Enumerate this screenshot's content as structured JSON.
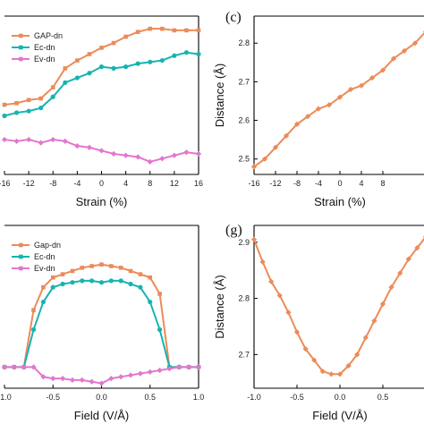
{
  "panel_labels": [
    "(c)",
    "(g)"
  ],
  "colors": {
    "orange": "#EC8B58",
    "teal": "#16B4B0",
    "pink": "#E277CF",
    "axis": "#000000"
  },
  "chart_data": [
    {
      "id": "top-left",
      "type": "line",
      "xlabel": "Strain (%)",
      "ylabel": "",
      "xlim": [
        -16,
        16
      ],
      "ylim": [
        0,
        1
      ],
      "xticks": [
        -16,
        -12,
        -8,
        -4,
        0,
        4,
        8,
        12,
        16
      ],
      "yticks": [],
      "legend": {
        "position": "top-left",
        "entries": [
          "GAP-dn",
          "Ec-dn",
          "Ev-dn"
        ]
      },
      "x": [
        -16,
        -14,
        -12,
        -10,
        -8,
        -6,
        -4,
        -2,
        0,
        2,
        4,
        6,
        8,
        10,
        12,
        14,
        16
      ],
      "series": [
        {
          "name": "GAP-dn",
          "color": "#EC8B58",
          "values": [
            0.44,
            0.45,
            0.47,
            0.48,
            0.55,
            0.67,
            0.72,
            0.76,
            0.8,
            0.83,
            0.87,
            0.9,
            0.92,
            0.92,
            0.91,
            0.91,
            0.91
          ]
        },
        {
          "name": "Ec-dn",
          "color": "#16B4B0",
          "values": [
            0.37,
            0.39,
            0.4,
            0.42,
            0.49,
            0.58,
            0.61,
            0.64,
            0.68,
            0.67,
            0.68,
            0.7,
            0.71,
            0.72,
            0.75,
            0.77,
            0.76
          ]
        },
        {
          "name": "Ev-dn",
          "color": "#E277CF",
          "values": [
            0.22,
            0.21,
            0.22,
            0.2,
            0.22,
            0.21,
            0.18,
            0.17,
            0.15,
            0.13,
            0.12,
            0.11,
            0.08,
            0.1,
            0.12,
            0.14,
            0.13
          ]
        }
      ]
    },
    {
      "id": "top-right",
      "type": "line",
      "xlabel": "Strain (%)",
      "ylabel": "Distance (Å)",
      "xlim": [
        -16,
        16
      ],
      "ylim": [
        2.46,
        2.87
      ],
      "xticks": [
        -16,
        -12,
        -8,
        -4,
        0,
        4,
        8
      ],
      "yticks": [
        2.5,
        2.6,
        2.7,
        2.8
      ],
      "x": [
        -16,
        -14,
        -12,
        -10,
        -8,
        -6,
        -4,
        -2,
        0,
        2,
        4,
        6,
        8,
        10,
        12,
        14,
        16
      ],
      "series": [
        {
          "name": "",
          "color": "#EC8B58",
          "values": [
            2.48,
            2.5,
            2.53,
            2.56,
            2.59,
            2.61,
            2.63,
            2.64,
            2.66,
            2.68,
            2.69,
            2.71,
            2.73,
            2.76,
            2.78,
            2.8,
            2.83
          ]
        }
      ]
    },
    {
      "id": "bottom-left",
      "type": "line",
      "xlabel": "Field (V/Å)",
      "ylabel": "",
      "xlim": [
        -1.0,
        1.0
      ],
      "ylim": [
        0,
        1
      ],
      "xticks": [
        "-1.0",
        "-0.5",
        "0.0",
        "0.5",
        "1.0"
      ],
      "yticks": [],
      "legend": {
        "position": "top-left",
        "entries": [
          "Gap-dn",
          "Ec-dn",
          "Ev-dn"
        ]
      },
      "x": [
        -1.0,
        -0.9,
        -0.8,
        -0.7,
        -0.6,
        -0.5,
        -0.4,
        -0.3,
        -0.2,
        -0.1,
        0.0,
        0.1,
        0.2,
        0.3,
        0.4,
        0.5,
        0.6,
        0.7,
        0.8,
        0.9,
        1.0
      ],
      "series": [
        {
          "name": "Gap-dn",
          "color": "#EC8B58",
          "values": [
            0.13,
            0.13,
            0.13,
            0.48,
            0.62,
            0.68,
            0.7,
            0.72,
            0.74,
            0.75,
            0.76,
            0.75,
            0.74,
            0.72,
            0.7,
            0.68,
            0.58,
            0.13,
            0.13,
            0.13,
            0.13
          ]
        },
        {
          "name": "Ec-dn",
          "color": "#16B4B0",
          "values": [
            0.13,
            0.13,
            0.13,
            0.36,
            0.53,
            0.62,
            0.64,
            0.65,
            0.66,
            0.66,
            0.65,
            0.66,
            0.66,
            0.64,
            0.62,
            0.53,
            0.36,
            0.13,
            0.13,
            0.13,
            0.13
          ]
        },
        {
          "name": "Ev-dn",
          "color": "#E277CF",
          "values": [
            0.13,
            0.13,
            0.13,
            0.13,
            0.07,
            0.06,
            0.06,
            0.05,
            0.05,
            0.04,
            0.03,
            0.06,
            0.07,
            0.08,
            0.09,
            0.1,
            0.11,
            0.12,
            0.13,
            0.13,
            0.13
          ]
        }
      ]
    },
    {
      "id": "bottom-right",
      "type": "line",
      "xlabel": "Field (V/Å)",
      "ylabel": "Distance (Å)",
      "xlim": [
        -1.0,
        1.0
      ],
      "ylim": [
        2.64,
        2.93
      ],
      "xticks": [
        "-1.0",
        "-0.5",
        "0.0",
        "0.5"
      ],
      "yticks": [
        "2.7",
        "2.8",
        "2.9"
      ],
      "x": [
        -1.0,
        -0.9,
        -0.8,
        -0.7,
        -0.6,
        -0.5,
        -0.4,
        -0.3,
        -0.2,
        -0.1,
        0.0,
        0.1,
        0.2,
        0.3,
        0.4,
        0.5,
        0.6,
        0.7,
        0.8,
        0.9,
        1.0
      ],
      "series": [
        {
          "name": "",
          "color": "#EC8B58",
          "values": [
            2.905,
            2.865,
            2.83,
            2.805,
            2.775,
            2.74,
            2.71,
            2.69,
            2.67,
            2.665,
            2.665,
            2.68,
            2.7,
            2.73,
            2.76,
            2.79,
            2.82,
            2.845,
            2.87,
            2.89,
            2.91
          ]
        }
      ]
    }
  ]
}
